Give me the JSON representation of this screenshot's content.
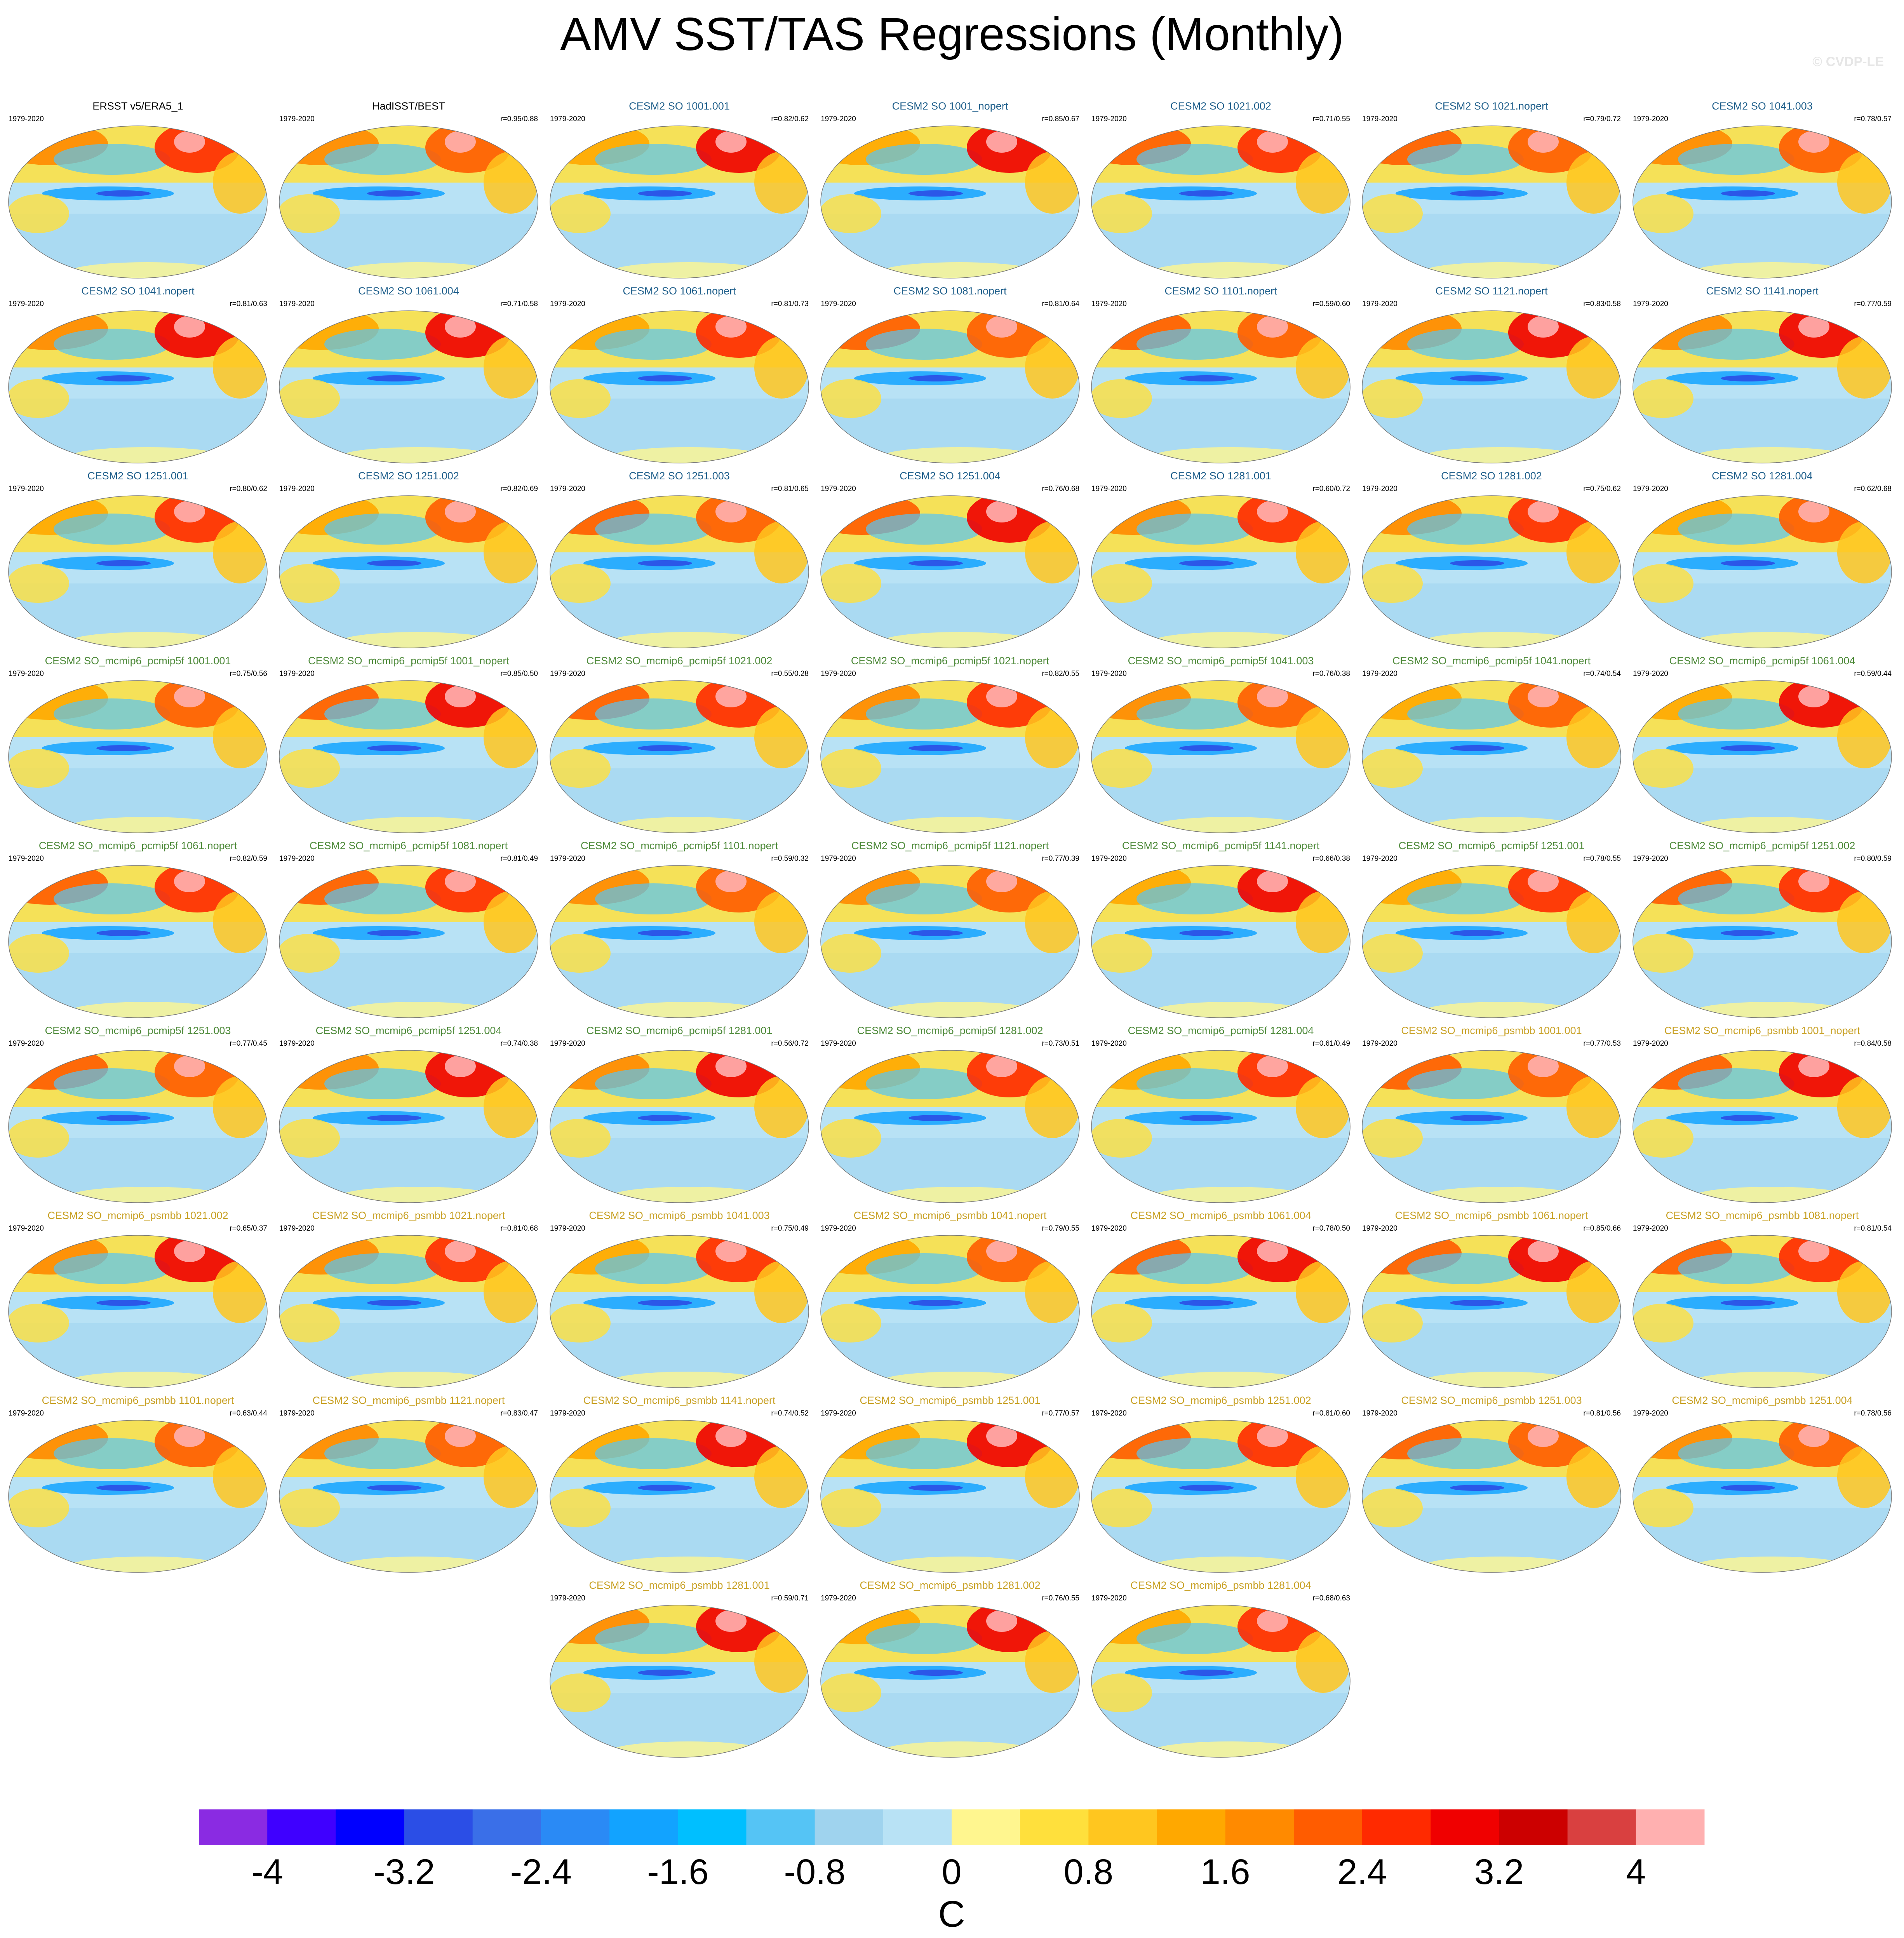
{
  "title": "AMV SST/TAS Regressions (Monthly)",
  "watermark": "© CVDP-LE",
  "chart_data": {
    "type": "heatmap",
    "title": "AMV SST/TAS Regressions (Monthly)",
    "projection": "global map (Robinson-like), regression pattern per dataset",
    "panels": [
      {
        "name": "ERSST v5/ERA5_1",
        "period": "1979-2020",
        "corr": "",
        "group": "obs"
      },
      {
        "name": "HadISST/BEST",
        "period": "1979-2020",
        "corr": "r=0.95/0.88",
        "group": "obs"
      },
      {
        "name": "CESM2 SO 1001.001",
        "period": "1979-2020",
        "corr": "r=0.82/0.62",
        "group": "so"
      },
      {
        "name": "CESM2 SO 1001_nopert",
        "period": "1979-2020",
        "corr": "r=0.85/0.67",
        "group": "so"
      },
      {
        "name": "CESM2 SO 1021.002",
        "period": "1979-2020",
        "corr": "r=0.71/0.55",
        "group": "so"
      },
      {
        "name": "CESM2 SO 1021.nopert",
        "period": "1979-2020",
        "corr": "r=0.79/0.72",
        "group": "so"
      },
      {
        "name": "CESM2 SO 1041.003",
        "period": "1979-2020",
        "corr": "r=0.78/0.57",
        "group": "so"
      },
      {
        "name": "CESM2 SO 1041.nopert",
        "period": "1979-2020",
        "corr": "r=0.81/0.63",
        "group": "so"
      },
      {
        "name": "CESM2 SO 1061.004",
        "period": "1979-2020",
        "corr": "r=0.71/0.58",
        "group": "so"
      },
      {
        "name": "CESM2 SO 1061.nopert",
        "period": "1979-2020",
        "corr": "r=0.81/0.73",
        "group": "so"
      },
      {
        "name": "CESM2 SO 1081.nopert",
        "period": "1979-2020",
        "corr": "r=0.81/0.64",
        "group": "so"
      },
      {
        "name": "CESM2 SO 1101.nopert",
        "period": "1979-2020",
        "corr": "r=0.59/0.60",
        "group": "so"
      },
      {
        "name": "CESM2 SO 1121.nopert",
        "period": "1979-2020",
        "corr": "r=0.83/0.58",
        "group": "so"
      },
      {
        "name": "CESM2 SO 1141.nopert",
        "period": "1979-2020",
        "corr": "r=0.77/0.59",
        "group": "so"
      },
      {
        "name": "CESM2 SO 1251.001",
        "period": "1979-2020",
        "corr": "r=0.80/0.62",
        "group": "so"
      },
      {
        "name": "CESM2 SO 1251.002",
        "period": "1979-2020",
        "corr": "r=0.82/0.69",
        "group": "so"
      },
      {
        "name": "CESM2 SO 1251.003",
        "period": "1979-2020",
        "corr": "r=0.81/0.65",
        "group": "so"
      },
      {
        "name": "CESM2 SO 1251.004",
        "period": "1979-2020",
        "corr": "r=0.76/0.68",
        "group": "so"
      },
      {
        "name": "CESM2 SO 1281.001",
        "period": "1979-2020",
        "corr": "r=0.60/0.72",
        "group": "so"
      },
      {
        "name": "CESM2 SO 1281.002",
        "period": "1979-2020",
        "corr": "r=0.75/0.62",
        "group": "so"
      },
      {
        "name": "CESM2 SO 1281.004",
        "period": "1979-2020",
        "corr": "r=0.62/0.68",
        "group": "so"
      },
      {
        "name": "CESM2 SO_mcmip6_pcmip5f 1001.001",
        "period": "1979-2020",
        "corr": "r=0.75/0.56",
        "group": "pcmip5f"
      },
      {
        "name": "CESM2 SO_mcmip6_pcmip5f 1001_nopert",
        "period": "1979-2020",
        "corr": "r=0.85/0.50",
        "group": "pcmip5f"
      },
      {
        "name": "CESM2 SO_mcmip6_pcmip5f 1021.002",
        "period": "1979-2020",
        "corr": "r=0.55/0.28",
        "group": "pcmip5f"
      },
      {
        "name": "CESM2 SO_mcmip6_pcmip5f 1021.nopert",
        "period": "1979-2020",
        "corr": "r=0.82/0.55",
        "group": "pcmip5f"
      },
      {
        "name": "CESM2 SO_mcmip6_pcmip5f 1041.003",
        "period": "1979-2020",
        "corr": "r=0.76/0.38",
        "group": "pcmip5f"
      },
      {
        "name": "CESM2 SO_mcmip6_pcmip5f 1041.nopert",
        "period": "1979-2020",
        "corr": "r=0.74/0.54",
        "group": "pcmip5f"
      },
      {
        "name": "CESM2 SO_mcmip6_pcmip5f 1061.004",
        "period": "1979-2020",
        "corr": "r=0.59/0.44",
        "group": "pcmip5f"
      },
      {
        "name": "CESM2 SO_mcmip6_pcmip5f 1061.nopert",
        "period": "1979-2020",
        "corr": "r=0.82/0.59",
        "group": "pcmip5f"
      },
      {
        "name": "CESM2 SO_mcmip6_pcmip5f 1081.nopert",
        "period": "1979-2020",
        "corr": "r=0.81/0.49",
        "group": "pcmip5f"
      },
      {
        "name": "CESM2 SO_mcmip6_pcmip5f 1101.nopert",
        "period": "1979-2020",
        "corr": "r=0.59/0.32",
        "group": "pcmip5f"
      },
      {
        "name": "CESM2 SO_mcmip6_pcmip5f 1121.nopert",
        "period": "1979-2020",
        "corr": "r=0.77/0.39",
        "group": "pcmip5f"
      },
      {
        "name": "CESM2 SO_mcmip6_pcmip5f 1141.nopert",
        "period": "1979-2020",
        "corr": "r=0.66/0.38",
        "group": "pcmip5f"
      },
      {
        "name": "CESM2 SO_mcmip6_pcmip5f 1251.001",
        "period": "1979-2020",
        "corr": "r=0.78/0.55",
        "group": "pcmip5f"
      },
      {
        "name": "CESM2 SO_mcmip6_pcmip5f 1251.002",
        "period": "1979-2020",
        "corr": "r=0.80/0.59",
        "group": "pcmip5f"
      },
      {
        "name": "CESM2 SO_mcmip6_pcmip5f 1251.003",
        "period": "1979-2020",
        "corr": "r=0.77/0.45",
        "group": "pcmip5f"
      },
      {
        "name": "CESM2 SO_mcmip6_pcmip5f 1251.004",
        "period": "1979-2020",
        "corr": "r=0.74/0.38",
        "group": "pcmip5f"
      },
      {
        "name": "CESM2 SO_mcmip6_pcmip5f 1281.001",
        "period": "1979-2020",
        "corr": "r=0.56/0.72",
        "group": "pcmip5f"
      },
      {
        "name": "CESM2 SO_mcmip6_pcmip5f 1281.002",
        "period": "1979-2020",
        "corr": "r=0.73/0.51",
        "group": "pcmip5f"
      },
      {
        "name": "CESM2 SO_mcmip6_pcmip5f 1281.004",
        "period": "1979-2020",
        "corr": "r=0.61/0.49",
        "group": "pcmip5f"
      },
      {
        "name": "CESM2 SO_mcmip6_psmbb 1001.001",
        "period": "1979-2020",
        "corr": "r=0.77/0.53",
        "group": "psmbb"
      },
      {
        "name": "CESM2 SO_mcmip6_psmbb 1001_nopert",
        "period": "1979-2020",
        "corr": "r=0.84/0.58",
        "group": "psmbb"
      },
      {
        "name": "CESM2 SO_mcmip6_psmbb 1021.002",
        "period": "1979-2020",
        "corr": "r=0.65/0.37",
        "group": "psmbb"
      },
      {
        "name": "CESM2 SO_mcmip6_psmbb 1021.nopert",
        "period": "1979-2020",
        "corr": "r=0.81/0.68",
        "group": "psmbb"
      },
      {
        "name": "CESM2 SO_mcmip6_psmbb 1041.003",
        "period": "1979-2020",
        "corr": "r=0.75/0.49",
        "group": "psmbb"
      },
      {
        "name": "CESM2 SO_mcmip6_psmbb 1041.nopert",
        "period": "1979-2020",
        "corr": "r=0.79/0.55",
        "group": "psmbb"
      },
      {
        "name": "CESM2 SO_mcmip6_psmbb 1061.004",
        "period": "1979-2020",
        "corr": "r=0.78/0.50",
        "group": "psmbb"
      },
      {
        "name": "CESM2 SO_mcmip6_psmbb 1061.nopert",
        "period": "1979-2020",
        "corr": "r=0.85/0.66",
        "group": "psmbb"
      },
      {
        "name": "CESM2 SO_mcmip6_psmbb 1081.nopert",
        "period": "1979-2020",
        "corr": "r=0.81/0.54",
        "group": "psmbb"
      },
      {
        "name": "CESM2 SO_mcmip6_psmbb 1101.nopert",
        "period": "1979-2020",
        "corr": "r=0.63/0.44",
        "group": "psmbb"
      },
      {
        "name": "CESM2 SO_mcmip6_psmbb 1121.nopert",
        "period": "1979-2020",
        "corr": "r=0.83/0.47",
        "group": "psmbb"
      },
      {
        "name": "CESM2 SO_mcmip6_psmbb 1141.nopert",
        "period": "1979-2020",
        "corr": "r=0.74/0.52",
        "group": "psmbb"
      },
      {
        "name": "CESM2 SO_mcmip6_psmbb 1251.001",
        "period": "1979-2020",
        "corr": "r=0.77/0.57",
        "group": "psmbb"
      },
      {
        "name": "CESM2 SO_mcmip6_psmbb 1251.002",
        "period": "1979-2020",
        "corr": "r=0.81/0.60",
        "group": "psmbb"
      },
      {
        "name": "CESM2 SO_mcmip6_psmbb 1251.003",
        "period": "1979-2020",
        "corr": "r=0.81/0.56",
        "group": "psmbb"
      },
      {
        "name": "CESM2 SO_mcmip6_psmbb 1251.004",
        "period": "1979-2020",
        "corr": "r=0.78/0.56",
        "group": "psmbb"
      },
      {
        "name": "CESM2 SO_mcmip6_psmbb 1281.001",
        "period": "1979-2020",
        "corr": "r=0.59/0.71",
        "group": "psmbb"
      },
      {
        "name": "CESM2 SO_mcmip6_psmbb 1281.002",
        "period": "1979-2020",
        "corr": "r=0.76/0.55",
        "group": "psmbb"
      },
      {
        "name": "CESM2 SO_mcmip6_psmbb 1281.004",
        "period": "1979-2020",
        "corr": "r=0.68/0.63",
        "group": "psmbb"
      }
    ],
    "group_title_colors": {
      "obs": "#000000",
      "so": "#1f5f8b",
      "pcmip5f": "#4e8a3a",
      "psmbb": "#c9a227"
    },
    "colorbar": {
      "unit": "C",
      "tick_labels": [
        "-4",
        "-3.2",
        "-2.4",
        "-1.6",
        "-0.8",
        "0",
        "0.8",
        "1.6",
        "2.4",
        "3.2",
        "4"
      ],
      "colors": [
        "#8a2be2",
        "#3f00ff",
        "#0000ff",
        "#2b4ee6",
        "#3a6fe8",
        "#2a8af5",
        "#12a3ff",
        "#00bfff",
        "#55c4f5",
        "#9fd3ee",
        "#b8e2f5",
        "#fff68f",
        "#ffe03c",
        "#ffc61f",
        "#ffa800",
        "#ff8a00",
        "#ff5c00",
        "#ff2a00",
        "#f00000",
        "#cc0000",
        "#d94040",
        "#ffb0b0"
      ]
    }
  }
}
